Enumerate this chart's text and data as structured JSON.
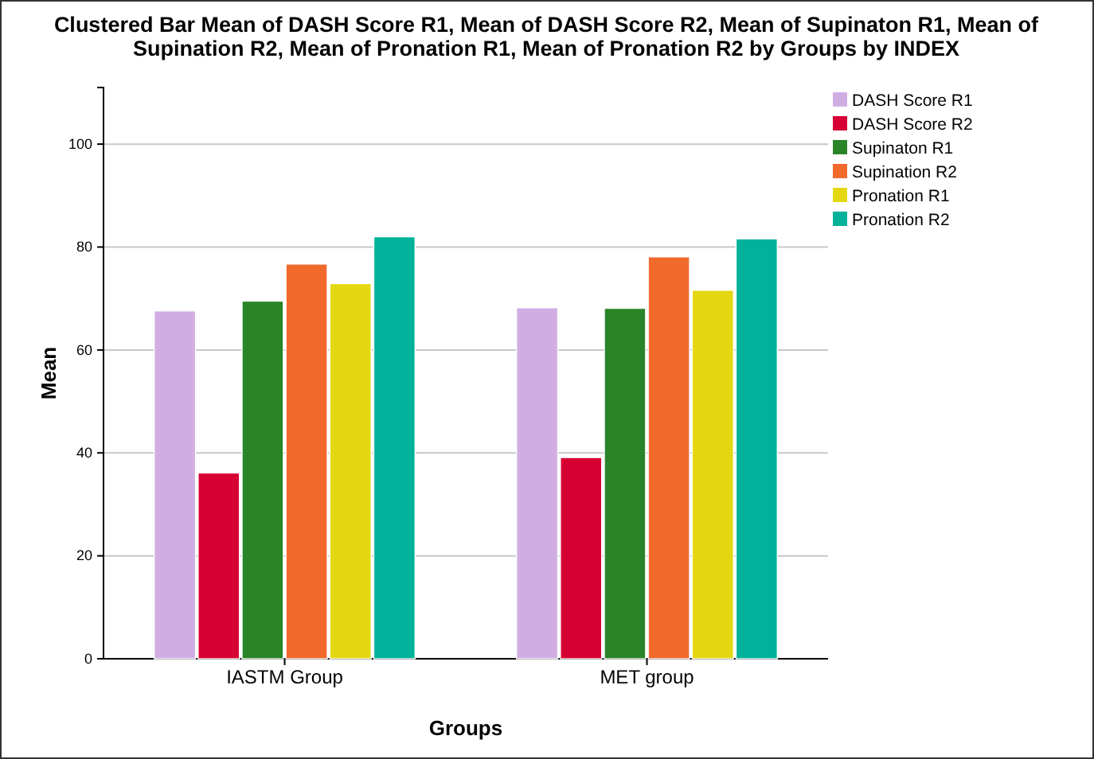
{
  "chart_data": {
    "type": "bar",
    "title": "Clustered Bar Mean of DASH Score R1, Mean of DASH Score R2, Mean of Supinaton R1, Mean of Supination R2, Mean of Pronation R1, Mean of Pronation R2 by Groups by INDEX",
    "xlabel": "Groups",
    "ylabel": "Mean",
    "categories": [
      "IASTM Group",
      "MET group"
    ],
    "series": [
      {
        "name": "DASH Score R1",
        "color": "#d0aee4",
        "values": [
          67.6,
          68.2
        ]
      },
      {
        "name": "DASH Score R2",
        "color": "#d70032",
        "values": [
          36.1,
          39.1
        ]
      },
      {
        "name": "Supinaton R1",
        "color": "#2a8529",
        "values": [
          69.5,
          68.1
        ]
      },
      {
        "name": "Supination R2",
        "color": "#f2692c",
        "values": [
          76.7,
          78.1
        ]
      },
      {
        "name": "Pronation R1",
        "color": "#e3d811",
        "values": [
          72.9,
          71.6
        ]
      },
      {
        "name": "Pronation R2",
        "color": "#00b29a",
        "values": [
          82.0,
          81.6
        ]
      }
    ],
    "ylim": [
      0,
      111
    ],
    "yticks": [
      0,
      20,
      40,
      60,
      80,
      100
    ],
    "grid": "y",
    "legend": "top right"
  }
}
